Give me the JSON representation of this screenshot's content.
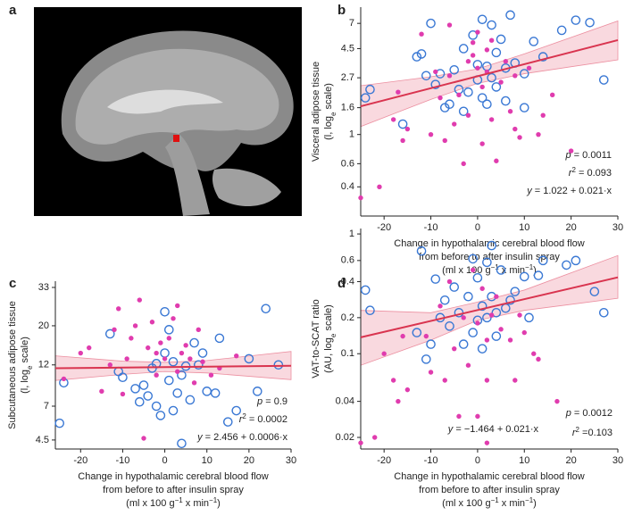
{
  "panel_a": {
    "label": "a"
  },
  "chart_data": [
    {
      "type": "scatter",
      "label": "b",
      "log_y": true,
      "xlim": [
        -25,
        30
      ],
      "xticks": [
        -20,
        -10,
        0,
        10,
        20,
        30
      ],
      "ylim": [
        0.24,
        9.3
      ],
      "yticks": [
        0.4,
        0.6,
        1,
        1.6,
        2.7,
        4.5,
        7
      ],
      "ylabel": [
        [
          "Visceral adipose tissue"
        ],
        [
          "(l, log",
          {
            "t": "e",
            "s": "sub"
          },
          " scale)"
        ]
      ],
      "xlabel": [
        [
          "Change in hypothalamic cerebral blood flow"
        ],
        [
          "from before to after insulin spray"
        ],
        [
          "(ml x 100 g",
          {
            "t": "−1",
            "s": "sup"
          },
          " x min",
          {
            "t": "−1",
            "s": "sup"
          },
          ")"
        ]
      ],
      "annotations": [
        [
          {
            "t": "p",
            "s": "i"
          },
          " = 0.0011"
        ],
        [
          {
            "t": "r",
            "s": "i"
          },
          {
            "t": "2",
            "s": "sup"
          },
          " = 0.093"
        ],
        [
          {
            "t": "y",
            "s": "i"
          },
          " = 1.022 + 0.021·x"
        ]
      ],
      "series": [
        {
          "color": "#3a78d4",
          "marker": "open",
          "x": [
            -24,
            -23,
            -13,
            -12,
            -10,
            -11,
            -9,
            -8,
            -7,
            -6,
            -5,
            -4,
            -3,
            -3,
            -2,
            -1,
            0,
            0,
            1,
            1,
            2,
            2,
            3,
            3,
            4,
            4,
            5,
            6,
            6,
            7,
            8,
            10,
            10,
            12,
            14,
            18,
            21,
            24,
            27,
            -16
          ],
          "values": [
            1.9,
            2.2,
            3.9,
            4.1,
            7,
            2.8,
            2.4,
            2.9,
            1.6,
            1.7,
            3.1,
            2.2,
            4.5,
            1.5,
            2.1,
            5.7,
            3.4,
            2.6,
            7.5,
            1.9,
            3.3,
            1.7,
            6.8,
            2.7,
            4.2,
            2.3,
            5.3,
            3.2,
            1.8,
            8.1,
            3.5,
            2.9,
            1.6,
            5.1,
            3.9,
            6.2,
            7.4,
            7.1,
            2.6,
            1.2
          ]
        },
        {
          "color": "#e03cae",
          "marker": "filled",
          "x": [
            -25,
            -21,
            -18,
            -17,
            -16,
            -15,
            -10,
            -9,
            -8,
            -7,
            -6,
            -5,
            -4,
            -3,
            -2,
            -2,
            -1,
            -1,
            0,
            0,
            1,
            1,
            2,
            2,
            3,
            3,
            4,
            5,
            6,
            7,
            8,
            8,
            9,
            11,
            13,
            14,
            16,
            20,
            -12,
            -6
          ],
          "values": [
            0.33,
            0.4,
            1.3,
            2.1,
            0.9,
            1.1,
            1.0,
            3.0,
            1.9,
            0.9,
            2.8,
            1.2,
            2.0,
            0.6,
            3.6,
            1.4,
            5.0,
            4.0,
            6.0,
            3.2,
            2.3,
            0.85,
            4.4,
            3.0,
            5.2,
            1.3,
            0.63,
            2.5,
            3.6,
            1.5,
            2.8,
            1.1,
            0.95,
            3.2,
            1.0,
            1.4,
            2.0,
            0.75,
            5.8,
            6.8
          ]
        }
      ],
      "band": {
        "color": "#f4b9c4",
        "x": [
          -25,
          -10,
          0,
          10,
          30
        ],
        "lower": [
          1.15,
          1.85,
          2.45,
          2.9,
          3.7
        ],
        "upper": [
          2.35,
          2.75,
          3.15,
          4.1,
          7.3
        ]
      },
      "fit": {
        "color": "#d9344f",
        "x": [
          -25,
          30
        ],
        "values": [
          1.64,
          5.22
        ]
      }
    },
    {
      "type": "scatter",
      "label": "c",
      "log_y": true,
      "xlim": [
        -26,
        30
      ],
      "xticks": [
        -20,
        -10,
        0,
        10,
        20,
        30
      ],
      "ylim": [
        4.0,
        35.8
      ],
      "yticks": [
        4.5,
        7,
        12,
        20,
        33
      ],
      "ylabel": [
        [
          "Subcutaneous adipose tissue"
        ],
        [
          "(l, log",
          {
            "t": "e",
            "s": "sub"
          },
          " scale)"
        ]
      ],
      "xlabel": [
        [
          "Change in hypothalamic cerebral blood flow"
        ],
        [
          "from before to after insulin spray"
        ],
        [
          "(ml x 100 g",
          {
            "t": "−1",
            "s": "sup"
          },
          " x min",
          {
            "t": "−1",
            "s": "sup"
          },
          ")"
        ]
      ],
      "annotations": [
        [
          {
            "t": "p",
            "s": "i"
          },
          " = 0.9"
        ],
        [
          {
            "t": "r",
            "s": "i"
          },
          {
            "t": "2",
            "s": "sup"
          },
          " = 0.0002"
        ],
        [
          {
            "t": "y",
            "s": "i"
          },
          " = 2.456 + 0.0006·x"
        ]
      ],
      "series": [
        {
          "color": "#3a78d4",
          "marker": "open",
          "x": [
            -25,
            -24,
            -13,
            -11,
            -10,
            -7,
            -6,
            -5,
            -4,
            -3,
            -2,
            -2,
            -1,
            0,
            0,
            1,
            1,
            2,
            2,
            3,
            4,
            4,
            5,
            6,
            7,
            8,
            9,
            10,
            12,
            13,
            15,
            17,
            20,
            22,
            24,
            27
          ],
          "values": [
            5.6,
            9.5,
            18,
            11,
            10.2,
            8.8,
            7.4,
            9.2,
            8.0,
            11.5,
            12.2,
            7.0,
            6.2,
            14,
            24,
            19,
            9.8,
            6.6,
            12.5,
            8.3,
            10.5,
            4.3,
            11.8,
            7.6,
            16,
            12,
            14,
            8.5,
            8.3,
            17,
            5.7,
            6.6,
            13,
            8.5,
            25,
            12
          ]
        },
        {
          "color": "#e03cae",
          "marker": "filled",
          "x": [
            -24,
            -20,
            -18,
            -15,
            -13,
            -12,
            -10,
            -9,
            -8,
            -7,
            -6,
            -5,
            -4,
            -3,
            -2,
            -2,
            -1,
            0,
            1,
            2,
            3,
            4,
            5,
            6,
            7,
            8,
            9,
            11,
            13,
            17,
            -11,
            3
          ],
          "values": [
            10,
            14,
            15,
            8.5,
            12,
            19,
            8.2,
            13,
            17,
            20,
            28,
            4.6,
            15,
            21,
            10.5,
            14,
            16,
            13,
            17,
            22,
            11,
            14,
            15.5,
            13,
            9.5,
            19,
            12.5,
            10.5,
            11.5,
            13.5,
            25,
            26
          ]
        }
      ],
      "band": {
        "color": "#f4b9c4",
        "x": [
          -26,
          -10,
          0,
          10,
          30
        ],
        "lower": [
          9.8,
          10.6,
          11.0,
          10.8,
          9.9
        ],
        "upper": [
          13.5,
          12.6,
          12.4,
          12.7,
          14.3
        ]
      },
      "fit": {
        "color": "#d9344f",
        "x": [
          -26,
          30
        ],
        "values": [
          11.48,
          11.87
        ]
      }
    },
    {
      "type": "scatter",
      "label": "d",
      "log_y": true,
      "xlim": [
        -25,
        30
      ],
      "xticks": [
        -20,
        -10,
        0,
        10,
        20,
        30
      ],
      "ylim": [
        0.016,
        1.11
      ],
      "yticks": [
        0.02,
        0.04,
        0.1,
        0.2,
        0.4,
        0.6,
        1
      ],
      "ylabel": [
        [
          "VAT-to-SCAT ratio"
        ],
        [
          "(AU, log",
          {
            "t": "e",
            "s": "sub"
          },
          " scale)"
        ]
      ],
      "xlabel": [
        [
          "Change in hypothalamic cerebral blood flow"
        ],
        [
          "from before to after insulin spray"
        ],
        [
          "(ml x 100 g",
          {
            "t": "−1",
            "s": "sup"
          },
          " x min",
          {
            "t": "−1",
            "s": "sup"
          },
          ")"
        ]
      ],
      "annotations": [
        [
          {
            "t": "p",
            "s": "i"
          },
          " = 0.0012"
        ],
        [
          {
            "t": "y",
            "s": "i"
          },
          " = −1.464 + 0.021·x"
        ],
        [
          {
            "t": "r",
            "s": "i"
          },
          {
            "t": "2",
            "s": "sup"
          },
          " =0.103"
        ]
      ],
      "series": [
        {
          "color": "#3a78d4",
          "marker": "open",
          "x": [
            -24,
            -23,
            -13,
            -12,
            -11,
            -10,
            -9,
            -8,
            -7,
            -6,
            -5,
            -4,
            -3,
            -2,
            -1,
            0,
            0,
            1,
            1,
            2,
            2,
            3,
            3,
            4,
            5,
            6,
            7,
            8,
            10,
            11,
            13,
            14,
            19,
            21,
            25,
            27,
            -1,
            4
          ],
          "values": [
            0.34,
            0.23,
            0.15,
            0.72,
            0.09,
            0.12,
            0.42,
            0.2,
            0.28,
            0.17,
            0.36,
            0.22,
            0.12,
            0.3,
            0.62,
            0.19,
            0.43,
            0.25,
            0.11,
            0.58,
            0.2,
            0.8,
            0.3,
            0.22,
            0.5,
            0.24,
            0.28,
            0.33,
            0.44,
            0.2,
            0.45,
            0.6,
            0.55,
            0.6,
            0.33,
            0.22,
            0.15,
            0.14
          ]
        },
        {
          "color": "#e03cae",
          "marker": "filled",
          "x": [
            -25,
            -22,
            -20,
            -18,
            -17,
            -16,
            -15,
            -11,
            -10,
            -8,
            -7,
            -6,
            -5,
            -4,
            -3,
            -2,
            -1,
            0,
            0,
            1,
            2,
            2,
            3,
            4,
            5,
            7,
            8,
            9,
            10,
            12,
            13,
            17,
            2
          ],
          "values": [
            0.018,
            0.02,
            0.1,
            0.06,
            0.04,
            0.14,
            0.05,
            0.14,
            0.07,
            0.25,
            0.06,
            0.4,
            0.11,
            0.03,
            0.2,
            0.08,
            0.5,
            0.18,
            0.03,
            0.35,
            0.13,
            0.06,
            0.21,
            0.3,
            0.16,
            0.13,
            0.06,
            0.21,
            0.15,
            0.1,
            0.09,
            0.04,
            0.018
          ]
        }
      ],
      "band": {
        "color": "#f4b9c4",
        "x": [
          -25,
          -10,
          0,
          10,
          30
        ],
        "lower": [
          0.08,
          0.13,
          0.19,
          0.23,
          0.29
        ],
        "upper": [
          0.23,
          0.22,
          0.27,
          0.34,
          0.66
        ]
      },
      "fit": {
        "color": "#d9344f",
        "x": [
          -25,
          30
        ],
        "values": [
          0.137,
          0.434
        ]
      }
    }
  ]
}
